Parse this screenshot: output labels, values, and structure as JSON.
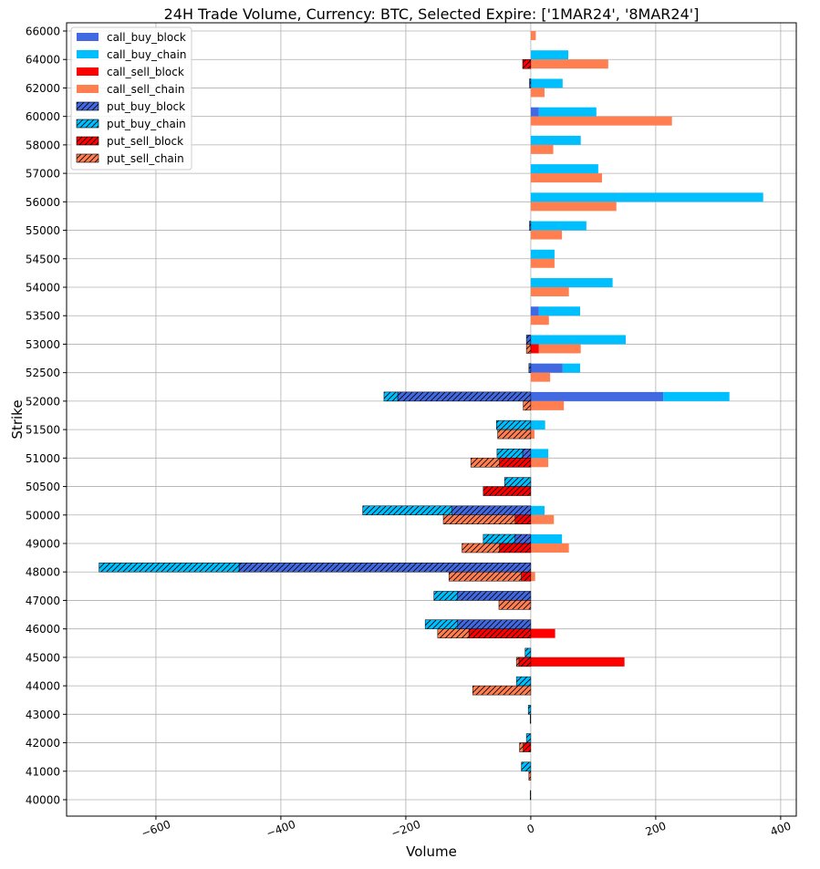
{
  "chart_data": {
    "type": "bar",
    "orientation": "horizontal",
    "stacked": true,
    "title": "24H Trade Volume, Currency: BTC, Selected Expire: ['1MAR24', '8MAR24']",
    "xlabel": "Volume",
    "ylabel": "Strike",
    "xlim": [
      -743,
      425
    ],
    "xticks": [
      -600,
      -400,
      -200,
      0,
      200,
      400
    ],
    "xtick_labels": [
      "−600",
      "−400",
      "−200",
      "0",
      "200",
      "400"
    ],
    "grid": true,
    "legend_position": "top-left",
    "categories": [
      "40000",
      "41000",
      "42000",
      "43000",
      "44000",
      "45000",
      "46000",
      "47000",
      "48000",
      "49000",
      "50000",
      "50500",
      "51000",
      "51500",
      "52000",
      "52500",
      "53000",
      "53500",
      "54000",
      "54500",
      "55000",
      "56000",
      "57000",
      "58000",
      "60000",
      "62000",
      "64000",
      "66000"
    ],
    "series": [
      {
        "name": "call_buy_block",
        "color": "#4169E1",
        "hatch": false,
        "side": "buy",
        "values": [
          0,
          0,
          0,
          0,
          0,
          0,
          0,
          0,
          0,
          0,
          0,
          0,
          0,
          0,
          212,
          51,
          0,
          13,
          0,
          0,
          0,
          0,
          0,
          0,
          13,
          0,
          0,
          0
        ]
      },
      {
        "name": "call_buy_chain",
        "color": "#00BFFF",
        "hatch": false,
        "side": "buy",
        "values": [
          0,
          0,
          0,
          0,
          0,
          0,
          0,
          0,
          0,
          50,
          22,
          0,
          28,
          23,
          106,
          28,
          152,
          66,
          131,
          38,
          89,
          372,
          108,
          80,
          92,
          51,
          60,
          0
        ]
      },
      {
        "name": "call_sell_block",
        "color": "#FF0000",
        "hatch": false,
        "side": "sell",
        "values": [
          0,
          0,
          0,
          0,
          0,
          150,
          39,
          0,
          0,
          0,
          0,
          0,
          0,
          0,
          0,
          0,
          13,
          0,
          0,
          0,
          0,
          0,
          0,
          0,
          0,
          0,
          0,
          0
        ]
      },
      {
        "name": "call_sell_chain",
        "color": "#FF7F50",
        "hatch": false,
        "side": "sell",
        "values": [
          0,
          0,
          0,
          0,
          0,
          0,
          0,
          0,
          7,
          61,
          37,
          0,
          28,
          6,
          53,
          31,
          67,
          29,
          61,
          38,
          50,
          137,
          114,
          36,
          226,
          22,
          124,
          8
        ]
      },
      {
        "name": "put_buy_block",
        "color": "#4169E1",
        "hatch": true,
        "side": "buy",
        "values": [
          0,
          0,
          0,
          0,
          0,
          0,
          -117,
          -117,
          -467,
          -25,
          -126,
          0,
          -13,
          0,
          -213,
          -3,
          -7,
          0,
          0,
          0,
          -2,
          0,
          0,
          0,
          0,
          -2,
          0,
          0
        ]
      },
      {
        "name": "put_buy_chain",
        "color": "#00BFFF",
        "hatch": true,
        "side": "buy",
        "values": [
          -1,
          -15,
          -7,
          -4,
          -23,
          -9,
          -52,
          -38,
          -224,
          -51,
          -143,
          -42,
          -41,
          -55,
          -22,
          0,
          0,
          0,
          0,
          0,
          0,
          0,
          0,
          0,
          0,
          0,
          0,
          0
        ]
      },
      {
        "name": "put_sell_block",
        "color": "#FF0000",
        "hatch": true,
        "side": "sell",
        "values": [
          0,
          0,
          -12,
          0,
          0,
          -19,
          -99,
          0,
          -15,
          -50,
          -25,
          -76,
          -50,
          0,
          0,
          0,
          0,
          0,
          0,
          0,
          0,
          0,
          0,
          0,
          0,
          0,
          -13,
          0
        ]
      },
      {
        "name": "put_sell_chain",
        "color": "#FF7F50",
        "hatch": true,
        "side": "sell",
        "values": [
          0,
          -3,
          -6,
          -1,
          -93,
          -4,
          -50,
          -51,
          -116,
          -60,
          -115,
          0,
          -46,
          -53,
          -12,
          0,
          -7,
          0,
          0,
          0,
          0,
          0,
          0,
          0,
          0,
          0,
          0,
          0
        ]
      }
    ]
  }
}
